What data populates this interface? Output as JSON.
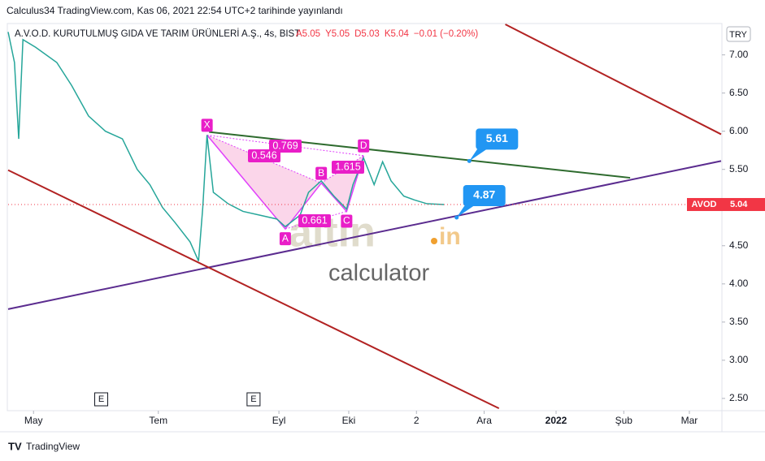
{
  "header": "Calculus34 TradingView.com, Kas 06, 2021 22:54 UTC+2 tarihinde yayınlandı",
  "chart_data": {
    "type": "line",
    "title": "A.V.O.D. KURUTULMUŞ GIDA VE TARIM ÜRÜNLERİ A.Ş., 4s, BIST",
    "ohlc": [
      "A5.05",
      "Y5.05",
      "D5.03",
      "K5.04",
      "−0.01 (−0.20%)"
    ],
    "currency": "TRY",
    "watermark": [
      "altin",
      "in",
      "calculator"
    ],
    "x": [
      106,
      109,
      111,
      113,
      119,
      129,
      136,
      144,
      152,
      160,
      167,
      173,
      179,
      185,
      192,
      196,
      198,
      200,
      203,
      210,
      217,
      225,
      233,
      237,
      244,
      248,
      254,
      260,
      266,
      269,
      274,
      279,
      283,
      287,
      293,
      298,
      304,
      312
    ],
    "series": [
      {
        "name": "AVOD",
        "color": "#26a69a",
        "values": [
          7.3,
          6.9,
          5.9,
          7.2,
          7.1,
          6.9,
          6.6,
          6.2,
          6.0,
          5.9,
          5.5,
          5.3,
          5.0,
          4.8,
          4.55,
          4.3,
          5.0,
          5.95,
          5.2,
          5.05,
          4.95,
          4.9,
          4.85,
          4.75,
          4.9,
          5.2,
          5.35,
          5.15,
          4.98,
          5.3,
          5.65,
          5.3,
          5.6,
          5.35,
          5.15,
          5.1,
          5.05,
          5.04
        ]
      }
    ],
    "last_price": {
      "name": "AVOD",
      "value": 5.04,
      "label": "5.04"
    },
    "trendlines": [
      {
        "color": "#5b2c8f",
        "x": [
          106,
          443
        ],
        "y": [
          3.67,
          5.61
        ]
      },
      {
        "color": "#2e6b2e",
        "x": [
          201,
          400
        ],
        "y": [
          5.99,
          5.39
        ]
      },
      {
        "color": "#b22222",
        "x": [
          341,
          443
        ],
        "y": [
          7.4,
          5.96
        ]
      },
      {
        "color": "#b22222",
        "x": [
          106,
          338
        ],
        "y": [
          5.49,
          2.37
        ]
      }
    ],
    "callouts": [
      {
        "x": 324,
        "y": 5.61,
        "label": "5.61"
      },
      {
        "x": 318,
        "y": 4.87,
        "label": "4.87"
      }
    ],
    "pattern": {
      "points": [
        {
          "label": "X",
          "x": 200,
          "y": 5.95
        },
        {
          "label": "A",
          "x": 237,
          "y": 4.72
        },
        {
          "label": "B",
          "x": 254,
          "y": 5.32
        },
        {
          "label": "C",
          "x": 266,
          "y": 4.95
        },
        {
          "label": "D",
          "x": 274,
          "y": 5.68
        }
      ],
      "ratios": [
        "0.769",
        "0.546",
        "1.615",
        "0.661"
      ]
    },
    "events": [
      {
        "x": 150,
        "label": "E"
      },
      {
        "x": 222,
        "label": "E"
      }
    ],
    "xlim": [
      106,
      443
    ],
    "ylim": [
      2.35,
      7.4
    ],
    "yticks": [
      {
        "value": 2.5,
        "label": "2.50"
      },
      {
        "value": 3,
        "label": "3.00"
      },
      {
        "value": 3.5,
        "label": "3.50"
      },
      {
        "value": 4,
        "label": "4.00"
      },
      {
        "value": 4.5,
        "label": "4.50"
      },
      {
        "value": 5,
        "label": "5.00"
      },
      {
        "value": 5.5,
        "label": "5.50"
      },
      {
        "value": 6,
        "label": "6.00"
      },
      {
        "value": 6.5,
        "label": "6.50"
      },
      {
        "value": 7,
        "label": "7.00"
      }
    ],
    "xticks": [
      {
        "value": 118,
        "label": "May"
      },
      {
        "value": 177,
        "label": "Tem"
      },
      {
        "value": 234,
        "label": "Eyl"
      },
      {
        "value": 267,
        "label": "Eki"
      },
      {
        "value": 299,
        "label": "2"
      },
      {
        "value": 331,
        "label": "Ara"
      },
      {
        "value": 365,
        "label": "2022"
      },
      {
        "value": 397,
        "label": "Şub"
      },
      {
        "value": 428,
        "label": "Mar"
      }
    ]
  },
  "footer": "TradingView"
}
